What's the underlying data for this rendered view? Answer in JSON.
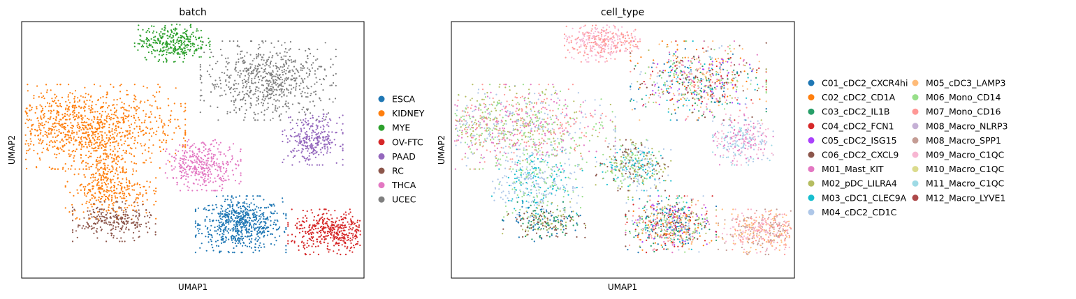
{
  "chart_data": [
    {
      "type": "scatter",
      "title": "batch",
      "xlabel": "UMAP1",
      "ylabel": "UMAP2",
      "ticks": false,
      "grid": false,
      "legend_position": "right",
      "legend": [
        {
          "label": "ESCA",
          "color": "#1f77b4"
        },
        {
          "label": "KIDNEY",
          "color": "#ff7f0e"
        },
        {
          "label": "MYE",
          "color": "#2ca02c"
        },
        {
          "label": "OV-FTC",
          "color": "#d62728"
        },
        {
          "label": "PAAD",
          "color": "#9467bd"
        },
        {
          "label": "RC",
          "color": "#8c564b"
        },
        {
          "label": "THCA",
          "color": "#e377c2"
        },
        {
          "label": "UCEC",
          "color": "#7f7f7f"
        }
      ],
      "clusters": [
        {
          "label": "ESCA",
          "center": [
            0.64,
            0.21
          ],
          "spread": [
            0.06,
            0.05
          ],
          "n": 650
        },
        {
          "label": "KIDNEY",
          "center": [
            0.17,
            0.59
          ],
          "spread": [
            0.14,
            0.075
          ],
          "n": 1100
        },
        {
          "label": "KIDNEY",
          "center": [
            0.26,
            0.34
          ],
          "spread": [
            0.06,
            0.05
          ],
          "n": 300
        },
        {
          "label": "KIDNEY",
          "center": [
            0.24,
            0.45
          ],
          "spread": [
            0.03,
            0.06
          ],
          "n": 150
        },
        {
          "label": "MYE",
          "center": [
            0.44,
            0.92
          ],
          "spread": [
            0.05,
            0.035
          ],
          "n": 350
        },
        {
          "label": "OV-FTC",
          "center": [
            0.91,
            0.18
          ],
          "spread": [
            0.06,
            0.04
          ],
          "n": 450
        },
        {
          "label": "PAAD",
          "center": [
            0.85,
            0.54
          ],
          "spread": [
            0.04,
            0.045
          ],
          "n": 300
        },
        {
          "label": "RC",
          "center": [
            0.27,
            0.22
          ],
          "spread": [
            0.055,
            0.035
          ],
          "n": 250
        },
        {
          "label": "THCA",
          "center": [
            0.53,
            0.44
          ],
          "spread": [
            0.05,
            0.045
          ],
          "n": 380
        },
        {
          "label": "UCEC",
          "center": [
            0.72,
            0.77
          ],
          "spread": [
            0.09,
            0.07
          ],
          "n": 700
        }
      ]
    },
    {
      "type": "scatter",
      "title": "cell_type",
      "xlabel": "UMAP1",
      "ylabel": "UMAP2",
      "ticks": false,
      "grid": false,
      "legend_position": "right",
      "legend": [
        {
          "label": "C01_cDC2_CXCR4hi",
          "color": "#1f77b4"
        },
        {
          "label": "C02_cDC2_CD1A",
          "color": "#ff7f0e"
        },
        {
          "label": "C03_cDC2_IL1B",
          "color": "#279e68"
        },
        {
          "label": "C04_cDC2_FCN1",
          "color": "#d62728"
        },
        {
          "label": "C05_cDC2_ISG15",
          "color": "#aa40fc"
        },
        {
          "label": "C06_cDC2_CXCL9",
          "color": "#8c564b"
        },
        {
          "label": "M01_Mast_KIT",
          "color": "#e377c2"
        },
        {
          "label": "M02_pDC_LILRA4",
          "color": "#b5bd61"
        },
        {
          "label": "M03_cDC1_CLEC9A",
          "color": "#17becf"
        },
        {
          "label": "M04_cDC2_CD1C",
          "color": "#aec7e8"
        },
        {
          "label": "M05_cDC3_LAMP3",
          "color": "#ffbb78"
        },
        {
          "label": "M06_Mono_CD14",
          "color": "#98df8a"
        },
        {
          "label": "M07_Mono_CD16",
          "color": "#ff9896"
        },
        {
          "label": "M08_Macro_NLRP3",
          "color": "#c5b0d5"
        },
        {
          "label": "M08_Macro_SPP1",
          "color": "#c49c94"
        },
        {
          "label": "M09_Macro_C1QC",
          "color": "#f7b6d2"
        },
        {
          "label": "M10_Macro_C1QC",
          "color": "#dbdb8d"
        },
        {
          "label": "M11_Macro_C1QC",
          "color": "#9edae5"
        },
        {
          "label": "M12_Macro_LYVE1",
          "color": "#ad494a"
        }
      ],
      "clusters": [
        {
          "labels": [
            "M07_Mono_CD16",
            "M09_Macro_C1QC"
          ],
          "center": [
            0.44,
            0.92
          ],
          "spread": [
            0.05,
            0.035
          ],
          "n": 350
        },
        {
          "labels": [
            "M07_Mono_CD16",
            "M01_Mast_KIT",
            "M06_Mono_CD14",
            "M02_pDC_LILRA4",
            "M04_cDC2_CD1C"
          ],
          "center": [
            0.17,
            0.59
          ],
          "spread": [
            0.14,
            0.075
          ],
          "n": 1100
        },
        {
          "labels": [
            "M04_cDC2_CD1C",
            "M04_cDC2_CD1C",
            "M06_Mono_CD14",
            "M03_cDC1_CLEC9A"
          ],
          "center": [
            0.25,
            0.37
          ],
          "spread": [
            0.06,
            0.06
          ],
          "n": 400
        },
        {
          "labels": [
            "C01_cDC2_CXCR4hi",
            "C06_cDC2_CXCL9",
            "C03_cDC2_IL1B",
            "M02_pDC_LILRA4"
          ],
          "center": [
            0.27,
            0.22
          ],
          "spread": [
            0.055,
            0.035
          ],
          "n": 250
        },
        {
          "labels": [
            "C01_cDC2_CXCR4hi",
            "C02_cDC2_CD1A",
            "C03_cDC2_IL1B",
            "C04_cDC2_FCN1",
            "C05_cDC2_ISG15",
            "C06_cDC2_CXCL9",
            "M01_Mast_KIT",
            "M02_pDC_LILRA4",
            "M03_cDC1_CLEC9A",
            "M04_cDC2_CD1C",
            "M05_cDC3_LAMP3",
            "M06_Mono_CD14",
            "M07_Mono_CD16"
          ],
          "center": [
            0.64,
            0.21
          ],
          "spread": [
            0.06,
            0.05
          ],
          "n": 650
        },
        {
          "labels": [
            "C01_cDC2_CXCR4hi",
            "C02_cDC2_CD1A",
            "C03_cDC2_IL1B",
            "C04_cDC2_FCN1",
            "C05_cDC2_ISG15",
            "C06_cDC2_CXCL9",
            "M01_Mast_KIT",
            "M02_pDC_LILRA4",
            "M03_cDC1_CLEC9A",
            "M04_cDC2_CD1C",
            "M05_cDC3_LAMP3",
            "M06_Mono_CD14",
            "M07_Mono_CD16"
          ],
          "center": [
            0.72,
            0.77
          ],
          "spread": [
            0.09,
            0.07
          ],
          "n": 700
        },
        {
          "labels": [
            "M02_pDC_LILRA4",
            "M06_Mono_CD14",
            "M03_cDC1_CLEC9A",
            "C06_cDC2_CXCL9",
            "M04_cDC2_CD1C"
          ],
          "center": [
            0.53,
            0.44
          ],
          "spread": [
            0.05,
            0.045
          ],
          "n": 380
        },
        {
          "labels": [
            "M09_Macro_C1QC",
            "M04_cDC2_CD1C",
            "M01_Mast_KIT",
            "M11_Macro_C1QC"
          ],
          "center": [
            0.85,
            0.54
          ],
          "spread": [
            0.04,
            0.045
          ],
          "n": 300
        },
        {
          "labels": [
            "M08_Macro_SPP1",
            "M09_Macro_C1QC",
            "M07_Mono_CD16",
            "M05_cDC3_LAMP3"
          ],
          "center": [
            0.91,
            0.18
          ],
          "spread": [
            0.06,
            0.04
          ],
          "n": 450
        }
      ]
    }
  ]
}
